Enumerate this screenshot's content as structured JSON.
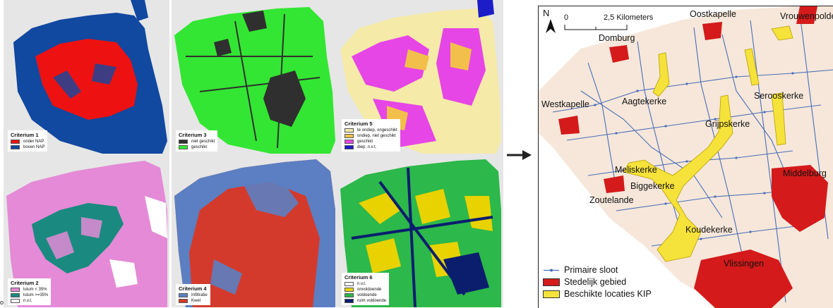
{
  "panels": [
    {
      "title": "Criterium 1",
      "items": [
        {
          "label": "onder NAP",
          "color": "#ee1111"
        },
        {
          "label": "boven NAP",
          "color": "#1148a0"
        }
      ]
    },
    {
      "title": "Criterium 3",
      "items": [
        {
          "label": "niet geschikt",
          "color": "#2f2f2f"
        },
        {
          "label": "geschikt",
          "color": "#33e633"
        }
      ]
    },
    {
      "title": "Criterium 5",
      "items": [
        {
          "label": "te ondiep, ongeschikt",
          "color": "#f5eaa8"
        },
        {
          "label": "ondiep, niet geschikt",
          "color": "#f2c04a"
        },
        {
          "label": "geschikt",
          "color": "#e646e6"
        },
        {
          "label": "diep, n.v.t.",
          "color": "#1c1cc8"
        }
      ]
    },
    {
      "title": "Criterium 2",
      "items": [
        {
          "label": "lutum < 35%",
          "color": "#e48ad6"
        },
        {
          "label": "lutum >=35%",
          "color": "#1a8a80"
        },
        {
          "label": "n.v.t.",
          "color": "#ffffff"
        }
      ]
    },
    {
      "title": "Criterium 4",
      "items": [
        {
          "label": "Infiltratie",
          "color": "#5b7fc2"
        },
        {
          "label": "Kwel",
          "color": "#d43a2c"
        }
      ]
    },
    {
      "title": "Criterium 6",
      "items": [
        {
          "label": "n.v.t.",
          "color": "#ffffff"
        },
        {
          "label": "onvoldoende",
          "color": "#e8d200"
        },
        {
          "label": "voldoende",
          "color": "#2cb84a"
        },
        {
          "label": "ruim voldoende",
          "color": "#0b1e6e"
        }
      ]
    }
  ],
  "arrow_icon": "right-arrow-icon",
  "map": {
    "north": "N",
    "scale": {
      "zero": "0",
      "distance": "2,5 Kilometers"
    },
    "places": [
      "Oostkapelle",
      "Vrouwenpolder",
      "Domburg",
      "Westkapelle",
      "Aagtekerke",
      "Serooskerke",
      "Grijpskerke",
      "Meliskerke",
      "Middelburg",
      "Biggekerke",
      "Zoutelande",
      "Koudekerke",
      "Vlissingen"
    ],
    "legend": [
      {
        "label": "Primaire sloot",
        "color": "#4a6fb8"
      },
      {
        "label": "Stedelijk gebied",
        "color": "#d41a1a"
      },
      {
        "label": "Beschikte locaties KIP",
        "color": "#f5e23a"
      }
    ]
  },
  "corner_label": "o"
}
